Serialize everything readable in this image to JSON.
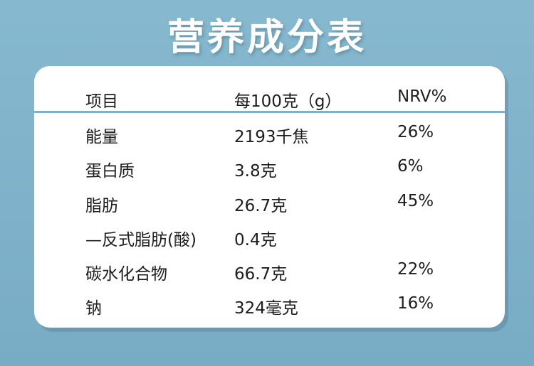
{
  "title": "营养成分表",
  "table": {
    "headers": [
      "项目",
      "每100克（g）",
      "NRV%"
    ],
    "rows": [
      {
        "item": "能量",
        "per100g": "2193千焦",
        "nrv": "26%"
      },
      {
        "item": "蛋白质",
        "per100g": "3.8克",
        "nrv": "6%"
      },
      {
        "item": "脂肪",
        "per100g": "26.7克",
        "nrv": "45%"
      },
      {
        "item": "—反式脂肪(酸)",
        "per100g": "0.4克",
        "nrv": ""
      },
      {
        "item": "碳水化合物",
        "per100g": "66.7克",
        "nrv": "22%"
      },
      {
        "item": "钠",
        "per100g": "324毫克",
        "nrv": "16%"
      }
    ]
  }
}
